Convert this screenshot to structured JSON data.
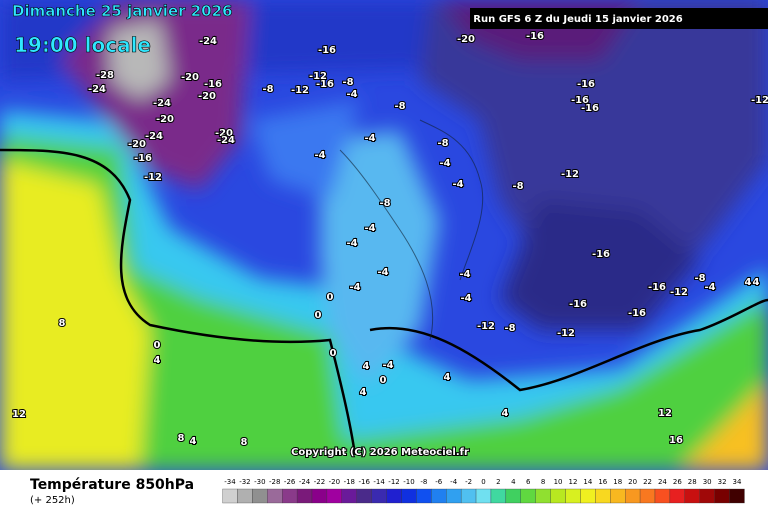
{
  "header": {
    "date": "Dimanche 25 janvier 2026",
    "time": "19:00 locale",
    "run": "Run GFS 6 Z du Jeudi 15 janvier 2026"
  },
  "map": {
    "labels": [
      -28,
      -24,
      -24,
      -20,
      -24,
      -20,
      -24,
      -20,
      -16,
      -12,
      -16,
      -20,
      -20,
      -24,
      -8,
      -12,
      -16,
      -12,
      -16,
      -8,
      -4,
      -8,
      -4,
      -4,
      -8,
      -4,
      -4,
      -8,
      -12,
      -8,
      -4,
      -4,
      -4,
      -4,
      -4,
      -4,
      -12,
      -8,
      -16,
      -12,
      -16,
      -16,
      -12,
      -16,
      -8,
      -4,
      4,
      4,
      0,
      0,
      0,
      8,
      4,
      0,
      4,
      -4,
      0,
      4,
      4,
      4,
      8,
      4,
      12,
      8,
      12,
      16,
      -20,
      -16,
      -16,
      -16,
      -16,
      -12
    ]
  },
  "copyright": "Copyright (C) 2026 Meteociel.fr",
  "footer": {
    "title": "Température 850hPa",
    "subtitle": "(+ 252h)"
  },
  "legend": {
    "values": [
      -34,
      -32,
      -30,
      -28,
      -26,
      -24,
      -22,
      -20,
      -18,
      -16,
      -14,
      -12,
      -10,
      -8,
      -6,
      -4,
      -2,
      0,
      2,
      4,
      6,
      8,
      10,
      12,
      14,
      16,
      18,
      20,
      22,
      24,
      26,
      28,
      30,
      32,
      34
    ],
    "colors": [
      "#d0d0d0",
      "#b0b0b0",
      "#909090",
      "#9a6a9a",
      "#8a3a8a",
      "#7a1a7a",
      "#8a008a",
      "#a000a0",
      "#6a1a9a",
      "#4a2a8a",
      "#3a2ab0",
      "#2020d0",
      "#1030e0",
      "#1050f0",
      "#2080f0",
      "#30a0f0",
      "#50c0f0",
      "#70e0f0",
      "#40d8a0",
      "#40d060",
      "#60d840",
      "#90e030",
      "#b8e820",
      "#d8f020",
      "#f0f020",
      "#f8d820",
      "#f8b820",
      "#f89820",
      "#f87820",
      "#f85020",
      "#e82020",
      "#c81010",
      "#a00808",
      "#780000",
      "#400000"
    ]
  }
}
